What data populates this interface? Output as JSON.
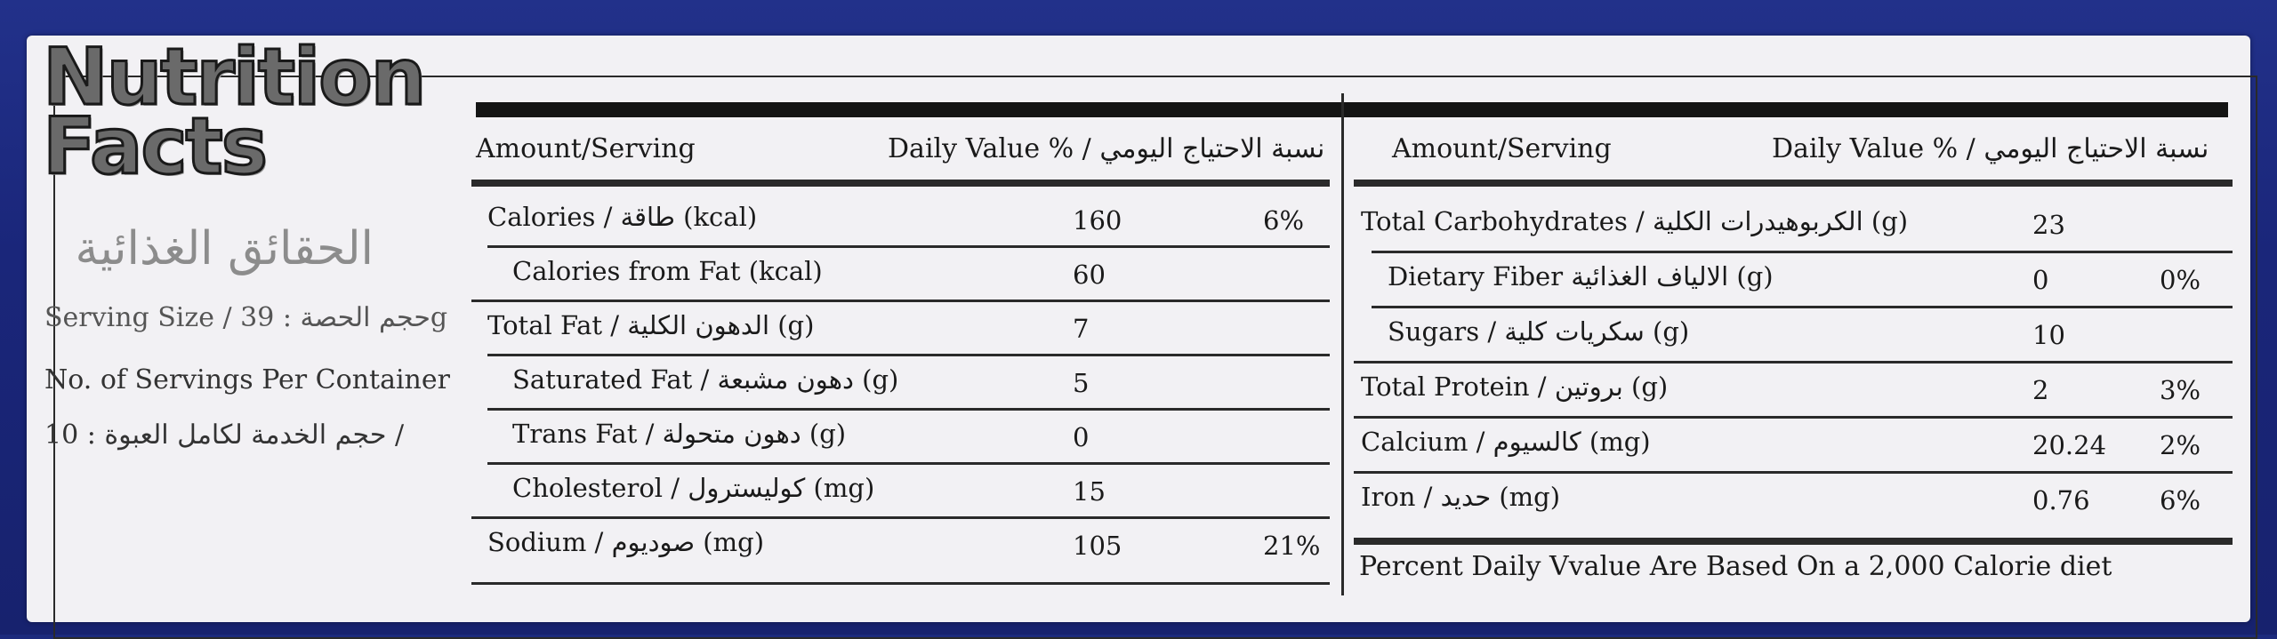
{
  "title_line1": "Nutrition",
  "title_line2": "Facts",
  "title_ar": "الحقائق الغذائية",
  "serving_size": "Serving Size / حجم الحصة : 39g",
  "servings_per_container": "No. of Servings Per Container",
  "servings_value": "10 : حجم الخدمة لكامل العبوة /",
  "header": {
    "amount": "Amount/Serving",
    "daily_value": "Daily Value % / نسبة الاحتياج اليومي"
  },
  "left_rows": [
    {
      "name": "Calories / طاقة (kcal)",
      "amount": "160",
      "dv": "6%",
      "indent": false
    },
    {
      "name": "Calories from Fat (kcal)",
      "amount": "60",
      "dv": "",
      "indent": true
    },
    {
      "name": "Total Fat / الدهون الكلية (g)",
      "amount": "7",
      "dv": "",
      "indent": false
    },
    {
      "name": "Saturated Fat / دهون مشبعة (g)",
      "amount": "5",
      "dv": "",
      "indent": true
    },
    {
      "name": "Trans Fat / دهون متحولة (g)",
      "amount": "0",
      "dv": "",
      "indent": true
    },
    {
      "name": "Cholesterol / كوليسترول (mg)",
      "amount": "15",
      "dv": "",
      "indent": true
    },
    {
      "name": "Sodium / صوديوم (mg)",
      "amount": "105",
      "dv": "21%",
      "indent": false
    }
  ],
  "right_rows": [
    {
      "name": "Total Carbohydrates / الكربوهيدرات الكلية (g)",
      "amount": "23",
      "dv": "",
      "indent": false
    },
    {
      "name": "Dietary Fiber الالياف الغذائية (g)",
      "amount": "0",
      "dv": "0%",
      "indent": true
    },
    {
      "name": "Sugars / سكريات كلية (g)",
      "amount": "10",
      "dv": "",
      "indent": true
    },
    {
      "name": "Total Protein / بروتين (g)",
      "amount": "2",
      "dv": "3%",
      "indent": false
    },
    {
      "name": "Calcium / كالسيوم (mg)",
      "amount": "20.24",
      "dv": "2%",
      "indent": false
    },
    {
      "name": "Iron / حديد  (mg)",
      "amount": "0.76",
      "dv": "6%",
      "indent": false
    }
  ],
  "footnote": "Percent Daily Vvalue Are Based On a 2,000 Calorie diet"
}
